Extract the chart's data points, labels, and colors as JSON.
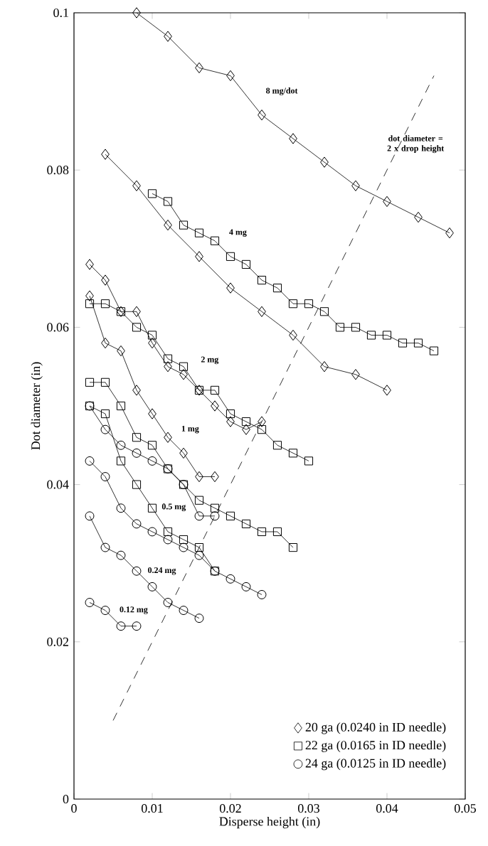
{
  "chart_data": {
    "type": "line",
    "xlabel": "Disperse height (in)",
    "ylabel": "Dot diameter (in)",
    "xlim": [
      0,
      0.05
    ],
    "ylim": [
      0,
      0.1
    ],
    "xticks": [
      0,
      0.01,
      0.02,
      0.03,
      0.04,
      0.05
    ],
    "yticks": [
      0,
      0.02,
      0.04,
      0.06,
      0.08,
      0.1
    ],
    "legend": "bottom right",
    "series": [
      {
        "name": "20 ga (0.0240 in ID needle)",
        "marker": "diamond",
        "line_style": "solid",
        "color": "#000000",
        "x": [
          0.008,
          0.012,
          0.016,
          0.02,
          0.024,
          0.028,
          0.032,
          0.036,
          0.04,
          0.044,
          0.048
        ],
        "values": [
          0.1,
          0.097,
          0.093,
          0.092,
          0.087,
          0.084,
          0.081,
          0.078,
          0.076,
          0.074,
          0.072
        ]
      },
      {
        "name": "22 ga (0.0165 in ID needle)",
        "marker": "square",
        "line_style": "solid",
        "color": "#000000",
        "x": [
          0.01,
          0.012,
          0.014,
          0.016,
          0.018,
          0.02,
          0.022,
          0.024,
          0.026,
          0.028,
          0.03,
          0.032,
          0.034,
          0.036,
          0.038,
          0.04,
          0.042,
          0.044,
          0.046
        ],
        "values": [
          0.077,
          0.076,
          0.073,
          0.072,
          0.071,
          0.069,
          0.068,
          0.066,
          0.065,
          0.063,
          0.063,
          0.062,
          0.06,
          0.06,
          0.059,
          0.059,
          0.058,
          0.058,
          0.057
        ]
      },
      {
        "name": "24 ga (0.0125 in ID needle)",
        "marker": "circle",
        "line_style": "solid",
        "color": "#000000",
        "x": [
          0.002,
          0.004,
          0.006,
          0.008
        ],
        "values": [
          0.025,
          0.024,
          0.022,
          0.022
        ]
      },
      {
        "marker": "diamond",
        "line_style": "solid",
        "color": "#000000",
        "x": [
          0.004,
          0.008,
          0.012,
          0.016,
          0.02,
          0.024,
          0.028,
          0.032,
          0.036,
          0.04
        ],
        "values": [
          0.082,
          0.078,
          0.073,
          0.069,
          0.065,
          0.062,
          0.059,
          0.055,
          0.054,
          0.052
        ]
      },
      {
        "marker": "diamond",
        "line_style": "solid",
        "color": "#000000",
        "x": [
          0.002,
          0.004,
          0.006,
          0.008,
          0.01,
          0.012,
          0.014,
          0.016,
          0.018,
          0.02,
          0.022,
          0.024
        ],
        "values": [
          0.068,
          0.066,
          0.062,
          0.062,
          0.058,
          0.055,
          0.054,
          0.052,
          0.05,
          0.048,
          0.047,
          0.048
        ]
      },
      {
        "marker": "diamond",
        "line_style": "solid",
        "color": "#000000",
        "x": [
          0.002,
          0.004,
          0.006,
          0.008,
          0.01,
          0.012,
          0.014,
          0.016,
          0.018
        ],
        "values": [
          0.064,
          0.058,
          0.057,
          0.052,
          0.049,
          0.046,
          0.044,
          0.041,
          0.041
        ]
      },
      {
        "marker": "square",
        "line_style": "solid",
        "color": "#000000",
        "x": [
          0.002,
          0.004,
          0.006,
          0.008,
          0.01,
          0.012,
          0.014,
          0.016,
          0.018,
          0.02,
          0.022,
          0.024,
          0.026,
          0.028,
          0.03
        ],
        "values": [
          0.063,
          0.063,
          0.062,
          0.06,
          0.059,
          0.056,
          0.055,
          0.052,
          0.052,
          0.049,
          0.048,
          0.047,
          0.045,
          0.044,
          0.043
        ]
      },
      {
        "marker": "square",
        "line_style": "solid",
        "color": "#000000",
        "x": [
          0.002,
          0.004,
          0.006,
          0.008,
          0.01,
          0.012,
          0.014,
          0.016,
          0.018,
          0.02,
          0.022,
          0.024,
          0.026,
          0.028
        ],
        "values": [
          0.053,
          0.053,
          0.05,
          0.046,
          0.045,
          0.042,
          0.04,
          0.038,
          0.037,
          0.036,
          0.035,
          0.034,
          0.034,
          0.032
        ]
      },
      {
        "marker": "square",
        "line_style": "solid",
        "color": "#000000",
        "x": [
          0.002,
          0.004,
          0.006,
          0.008,
          0.01,
          0.012,
          0.014,
          0.016,
          0.018
        ],
        "values": [
          0.05,
          0.049,
          0.043,
          0.04,
          0.037,
          0.034,
          0.033,
          0.032,
          0.029
        ]
      },
      {
        "marker": "circle",
        "line_style": "solid",
        "color": "#000000",
        "x": [
          0.002,
          0.004,
          0.006,
          0.008,
          0.01,
          0.012,
          0.014,
          0.016,
          0.018
        ],
        "values": [
          0.05,
          0.047,
          0.045,
          0.044,
          0.043,
          0.042,
          0.04,
          0.036,
          0.036
        ]
      },
      {
        "marker": "circle",
        "line_style": "solid",
        "color": "#000000",
        "x": [
          0.002,
          0.004,
          0.006,
          0.008,
          0.01,
          0.012,
          0.014,
          0.016,
          0.018,
          0.02,
          0.022,
          0.024
        ],
        "values": [
          0.043,
          0.041,
          0.037,
          0.035,
          0.034,
          0.033,
          0.032,
          0.031,
          0.029,
          0.028,
          0.027,
          0.026
        ]
      },
      {
        "marker": "circle",
        "line_style": "solid",
        "color": "#000000",
        "x": [
          0.002,
          0.004,
          0.006,
          0.008,
          0.01,
          0.012,
          0.014,
          0.016
        ],
        "values": [
          0.036,
          0.032,
          0.031,
          0.029,
          0.027,
          0.025,
          0.024,
          0.023
        ]
      },
      {
        "marker": "none",
        "line_style": "dashed",
        "color": "#000000",
        "x": [
          0.005,
          0.046
        ],
        "values": [
          0.01,
          0.092
        ]
      }
    ],
    "annotations": [
      "8 mg/dot",
      "dot diameter = 2 x drop height",
      "4 mg",
      "2 mg",
      "1 mg",
      "0.5 mg",
      "0.24 mg",
      "0.12 mg"
    ]
  }
}
